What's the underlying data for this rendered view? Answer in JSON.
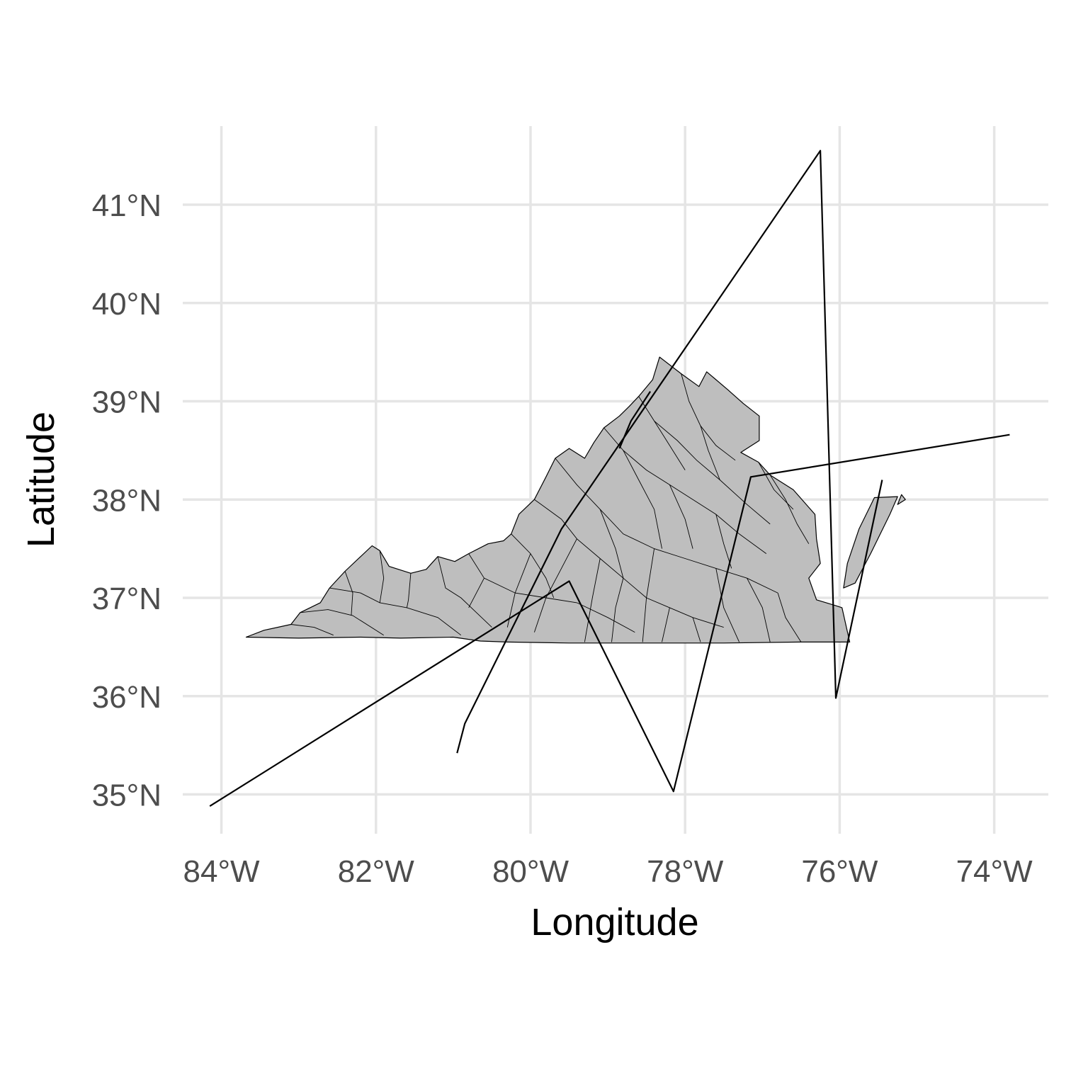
{
  "map": {
    "xlabel": "Longitude",
    "ylabel": "Latitude",
    "xlim": [
      -84.5,
      -73.3
    ],
    "ylim": [
      34.6,
      41.8
    ],
    "x_ticks": [
      {
        "value": -84,
        "label": "84°W"
      },
      {
        "value": -82,
        "label": "82°W"
      },
      {
        "value": -80,
        "label": "80°W"
      },
      {
        "value": -78,
        "label": "78°W"
      },
      {
        "value": -76,
        "label": "76°W"
      },
      {
        "value": -74,
        "label": "74°W"
      }
    ],
    "y_ticks": [
      {
        "value": 35,
        "label": "35°N"
      },
      {
        "value": 36,
        "label": "36°N"
      },
      {
        "value": 37,
        "label": "37°N"
      },
      {
        "value": 38,
        "label": "38°N"
      },
      {
        "value": 39,
        "label": "39°N"
      },
      {
        "value": 40,
        "label": "40°N"
      },
      {
        "value": 41,
        "label": "41°N"
      }
    ],
    "grid": true,
    "state_fill": "#bebebe",
    "line_color": "#000000",
    "grid_color": "#e5e5e5"
  },
  "chart_data": {
    "type": "map",
    "xlabel": "Longitude",
    "ylabel": "Latitude",
    "xlim": [
      -84.5,
      -73.3
    ],
    "ylim": [
      34.6,
      41.8
    ],
    "regions": [
      {
        "lonlat": [
          [
            -83.68,
            36.6
          ],
          [
            -83.45,
            36.67
          ],
          [
            -83.1,
            36.73
          ],
          [
            -82.98,
            36.85
          ],
          [
            -82.72,
            36.95
          ],
          [
            -82.6,
            37.1
          ],
          [
            -82.4,
            37.27
          ],
          [
            -82.05,
            37.53
          ],
          [
            -81.95,
            37.48
          ],
          [
            -81.83,
            37.32
          ],
          [
            -81.55,
            37.25
          ],
          [
            -81.35,
            37.29
          ],
          [
            -81.2,
            37.42
          ],
          [
            -80.98,
            37.37
          ],
          [
            -80.8,
            37.45
          ],
          [
            -80.55,
            37.55
          ],
          [
            -80.35,
            37.58
          ],
          [
            -80.25,
            37.65
          ],
          [
            -80.15,
            37.85
          ],
          [
            -79.95,
            38.0
          ],
          [
            -79.8,
            38.23
          ],
          [
            -79.68,
            38.42
          ],
          [
            -79.5,
            38.52
          ],
          [
            -79.3,
            38.42
          ],
          [
            -79.18,
            38.58
          ],
          [
            -79.05,
            38.73
          ],
          [
            -78.85,
            38.85
          ],
          [
            -78.72,
            38.95
          ],
          [
            -78.6,
            39.05
          ],
          [
            -78.42,
            39.22
          ],
          [
            -78.33,
            39.45
          ],
          [
            -78.05,
            39.28
          ],
          [
            -77.82,
            39.15
          ],
          [
            -77.72,
            39.3
          ],
          [
            -77.6,
            39.22
          ],
          [
            -77.45,
            39.12
          ],
          [
            -77.25,
            38.98
          ],
          [
            -77.04,
            38.85
          ],
          [
            -77.04,
            38.6
          ],
          [
            -77.28,
            38.48
          ],
          [
            -77.05,
            38.38
          ],
          [
            -76.9,
            38.25
          ],
          [
            -76.6,
            38.1
          ],
          [
            -76.32,
            37.85
          ],
          [
            -76.3,
            37.6
          ],
          [
            -76.25,
            37.35
          ],
          [
            -76.4,
            37.2
          ],
          [
            -76.3,
            36.98
          ],
          [
            -76.05,
            36.92
          ],
          [
            -75.97,
            36.9
          ],
          [
            -75.87,
            36.55
          ],
          [
            -76.5,
            36.55
          ],
          [
            -77.5,
            36.54
          ],
          [
            -78.5,
            36.54
          ],
          [
            -79.5,
            36.54
          ],
          [
            -80.3,
            36.55
          ],
          [
            -80.65,
            36.56
          ],
          [
            -81.0,
            36.6
          ],
          [
            -81.68,
            36.59
          ],
          [
            -82.2,
            36.6
          ],
          [
            -83.0,
            36.59
          ],
          [
            -83.68,
            36.6
          ]
        ],
        "counties": [
          [
            [
              -83.1,
              36.73
            ],
            [
              -82.8,
              36.7
            ],
            [
              -82.55,
              36.62
            ]
          ],
          [
            [
              -82.98,
              36.85
            ],
            [
              -82.62,
              36.88
            ],
            [
              -82.3,
              36.82
            ],
            [
              -81.9,
              36.62
            ]
          ],
          [
            [
              -82.6,
              37.1
            ],
            [
              -82.2,
              37.05
            ],
            [
              -81.95,
              36.95
            ],
            [
              -81.6,
              36.9
            ],
            [
              -81.2,
              36.8
            ],
            [
              -80.9,
              36.62
            ]
          ],
          [
            [
              -82.4,
              37.27
            ],
            [
              -82.3,
              37.05
            ],
            [
              -82.32,
              36.82
            ]
          ],
          [
            [
              -81.95,
              37.48
            ],
            [
              -81.9,
              37.2
            ],
            [
              -81.95,
              36.95
            ]
          ],
          [
            [
              -81.55,
              37.25
            ],
            [
              -81.58,
              36.98
            ],
            [
              -81.6,
              36.9
            ]
          ],
          [
            [
              -81.2,
              37.42
            ],
            [
              -81.1,
              37.1
            ],
            [
              -80.9,
              37.0
            ],
            [
              -80.7,
              36.85
            ],
            [
              -80.5,
              36.7
            ]
          ],
          [
            [
              -80.8,
              37.45
            ],
            [
              -80.6,
              37.2
            ],
            [
              -80.2,
              37.05
            ],
            [
              -79.8,
              37.0
            ],
            [
              -79.4,
              36.95
            ],
            [
              -79.0,
              36.8
            ],
            [
              -78.65,
              36.65
            ]
          ],
          [
            [
              -80.25,
              37.65
            ],
            [
              -80.0,
              37.45
            ],
            [
              -79.8,
              37.2
            ],
            [
              -79.7,
              37.0
            ]
          ],
          [
            [
              -79.95,
              38.0
            ],
            [
              -79.6,
              37.8
            ],
            [
              -79.4,
              37.6
            ],
            [
              -79.1,
              37.4
            ],
            [
              -78.8,
              37.2
            ],
            [
              -78.5,
              37.0
            ],
            [
              -78.2,
              36.9
            ],
            [
              -77.9,
              36.8
            ],
            [
              -77.5,
              36.7
            ]
          ],
          [
            [
              -79.68,
              38.42
            ],
            [
              -79.4,
              38.15
            ],
            [
              -79.1,
              37.9
            ],
            [
              -78.8,
              37.65
            ],
            [
              -78.4,
              37.5
            ],
            [
              -78.0,
              37.4
            ],
            [
              -77.6,
              37.3
            ],
            [
              -77.2,
              37.2
            ],
            [
              -76.8,
              37.05
            ]
          ],
          [
            [
              -79.05,
              38.73
            ],
            [
              -78.8,
              38.5
            ],
            [
              -78.5,
              38.3
            ],
            [
              -78.2,
              38.15
            ],
            [
              -77.9,
              38.0
            ],
            [
              -77.6,
              37.85
            ],
            [
              -77.3,
              37.65
            ],
            [
              -76.95,
              37.45
            ]
          ],
          [
            [
              -78.6,
              39.05
            ],
            [
              -78.4,
              38.8
            ],
            [
              -78.1,
              38.6
            ],
            [
              -77.85,
              38.4
            ],
            [
              -77.55,
              38.2
            ],
            [
              -77.2,
              37.95
            ],
            [
              -76.9,
              37.75
            ]
          ],
          [
            [
              -78.05,
              39.28
            ],
            [
              -77.95,
              39.0
            ],
            [
              -77.8,
              38.75
            ],
            [
              -77.6,
              38.55
            ],
            [
              -77.35,
              38.4
            ]
          ],
          [
            [
              -80.6,
              37.2
            ],
            [
              -80.8,
              36.9
            ]
          ],
          [
            [
              -80.0,
              37.45
            ],
            [
              -80.2,
              37.05
            ],
            [
              -80.3,
              36.7
            ]
          ],
          [
            [
              -79.4,
              37.6
            ],
            [
              -79.6,
              37.3
            ],
            [
              -79.8,
              37.0
            ],
            [
              -79.95,
              36.65
            ]
          ],
          [
            [
              -79.1,
              37.4
            ],
            [
              -79.2,
              37.0
            ],
            [
              -79.3,
              36.55
            ]
          ],
          [
            [
              -78.8,
              37.2
            ],
            [
              -78.9,
              36.9
            ],
            [
              -78.95,
              36.55
            ]
          ],
          [
            [
              -78.2,
              36.9
            ],
            [
              -78.3,
              36.55
            ]
          ],
          [
            [
              -77.9,
              36.8
            ],
            [
              -77.8,
              36.55
            ]
          ],
          [
            [
              -79.1,
              37.9
            ],
            [
              -78.9,
              37.5
            ],
            [
              -78.8,
              37.2
            ]
          ],
          [
            [
              -78.4,
              37.5
            ],
            [
              -78.5,
              37.0
            ],
            [
              -78.55,
              36.55
            ]
          ],
          [
            [
              -77.6,
              37.3
            ],
            [
              -77.5,
              36.9
            ],
            [
              -77.3,
              36.55
            ]
          ],
          [
            [
              -77.2,
              37.2
            ],
            [
              -77.0,
              36.9
            ],
            [
              -76.9,
              36.55
            ]
          ],
          [
            [
              -76.8,
              37.05
            ],
            [
              -76.7,
              36.8
            ],
            [
              -76.5,
              36.55
            ]
          ],
          [
            [
              -78.8,
              38.5
            ],
            [
              -78.6,
              38.2
            ],
            [
              -78.4,
              37.9
            ],
            [
              -78.3,
              37.5
            ]
          ],
          [
            [
              -78.2,
              38.15
            ],
            [
              -78.0,
              37.8
            ],
            [
              -77.9,
              37.5
            ]
          ],
          [
            [
              -77.6,
              37.85
            ],
            [
              -77.5,
              37.55
            ],
            [
              -77.4,
              37.3
            ]
          ],
          [
            [
              -78.4,
              38.8
            ],
            [
              -78.2,
              38.55
            ],
            [
              -78.0,
              38.3
            ]
          ],
          [
            [
              -77.8,
              38.75
            ],
            [
              -77.7,
              38.5
            ],
            [
              -77.55,
              38.2
            ]
          ],
          [
            [
              -76.9,
              38.25
            ],
            [
              -76.7,
              38.0
            ],
            [
              -76.55,
              37.75
            ],
            [
              -76.4,
              37.55
            ]
          ],
          [
            [
              -77.05,
              38.38
            ],
            [
              -76.85,
              38.1
            ],
            [
              -76.6,
              37.9
            ]
          ]
        ],
        "islands": [
          [
            [
              -75.55,
              38.02
            ],
            [
              -75.25,
              38.03
            ],
            [
              -75.35,
              37.85
            ],
            [
              -75.6,
              37.45
            ],
            [
              -75.8,
              37.15
            ],
            [
              -75.95,
              37.1
            ],
            [
              -75.9,
              37.35
            ],
            [
              -75.75,
              37.7
            ],
            [
              -75.55,
              38.02
            ]
          ],
          [
            [
              -75.2,
              38.05
            ],
            [
              -75.25,
              37.95
            ],
            [
              -75.15,
              38.0
            ],
            [
              -75.2,
              38.05
            ]
          ]
        ]
      }
    ],
    "series": [
      {
        "type": "line",
        "points": [
          [
            -84.15,
            34.88
          ],
          [
            -79.5,
            37.17
          ],
          [
            -78.15,
            35.03
          ],
          [
            -77.15,
            38.23
          ],
          [
            -73.8,
            38.66
          ]
        ]
      },
      {
        "type": "line",
        "points": [
          [
            -80.95,
            35.42
          ],
          [
            -80.85,
            35.72
          ],
          [
            -79.6,
            37.7
          ],
          [
            -76.25,
            41.55
          ],
          [
            -76.05,
            35.98
          ],
          [
            -75.45,
            38.2
          ]
        ]
      },
      {
        "type": "line",
        "points": [
          [
            -78.85,
            38.52
          ],
          [
            -78.7,
            38.8
          ],
          [
            -78.45,
            39.1
          ]
        ]
      }
    ]
  }
}
